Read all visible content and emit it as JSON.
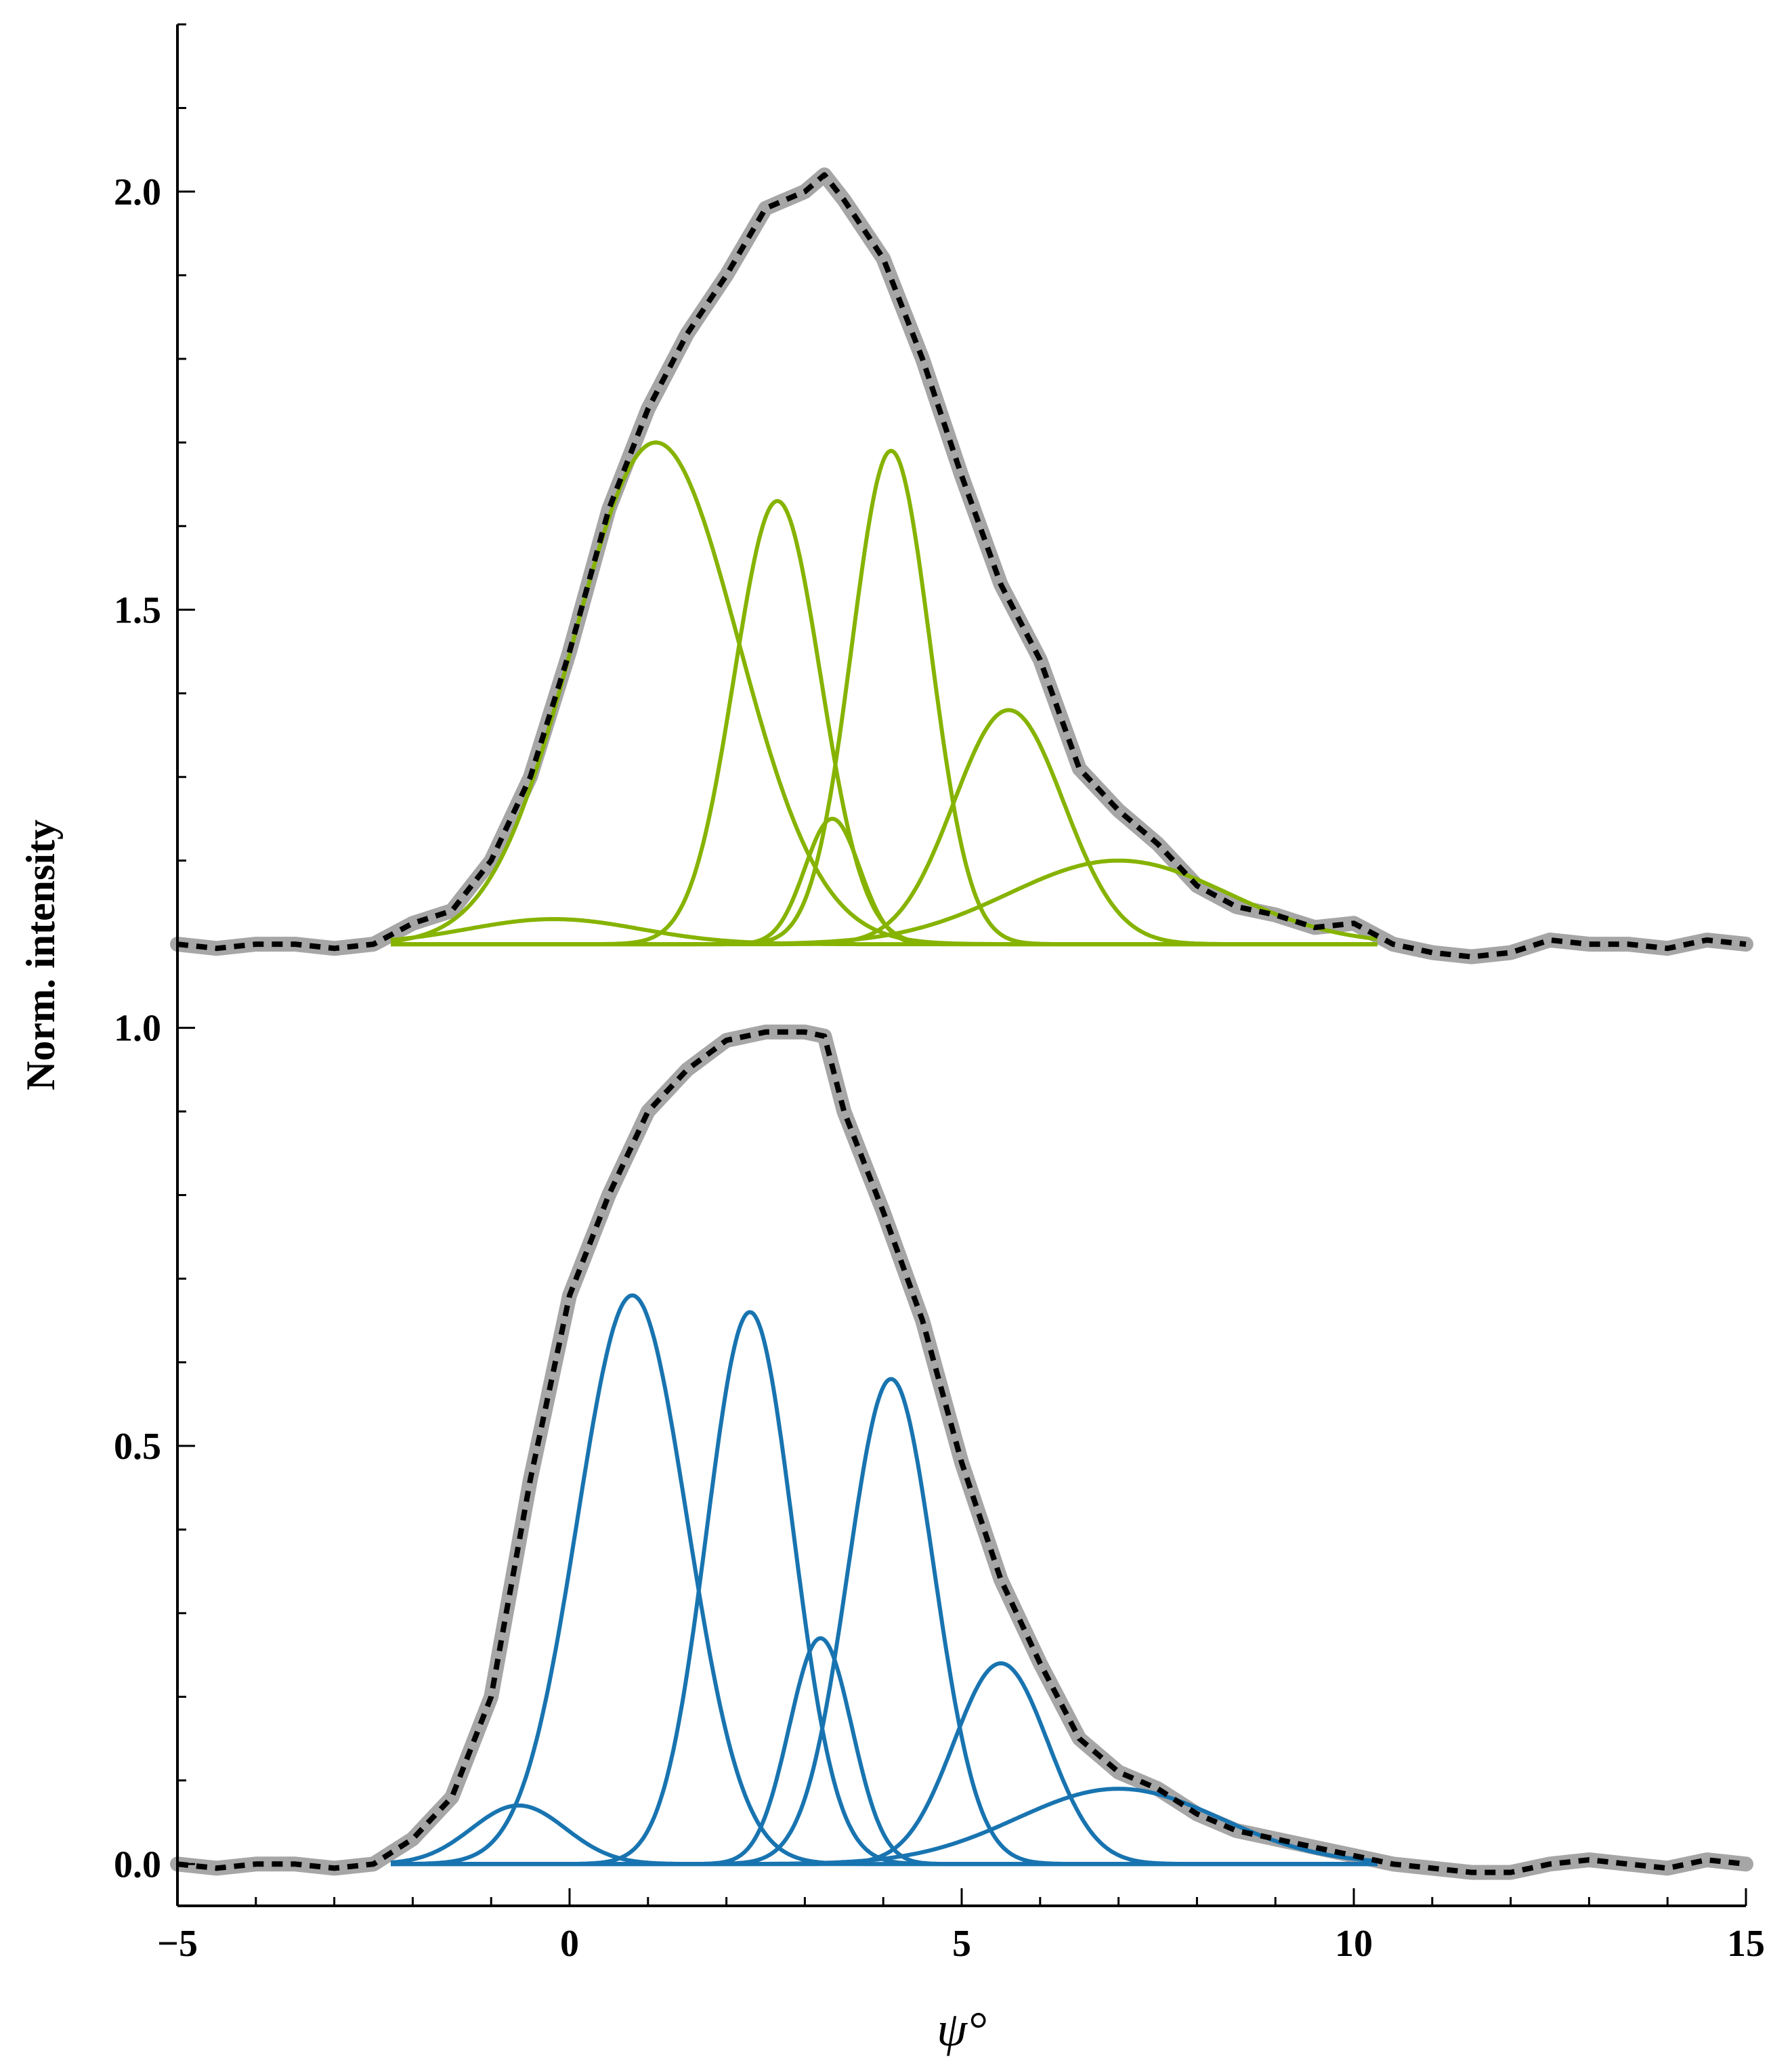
{
  "chart_data": {
    "type": "line",
    "title": "",
    "xlabel": "ψ°",
    "ylabel": "Norm. intensity",
    "xlim": [
      -5,
      15
    ],
    "ylim": [
      -0.05,
      2.2
    ],
    "grid": false,
    "x_ticks": [
      {
        "value": -5,
        "label": "−5"
      },
      {
        "value": 0,
        "label": "0"
      },
      {
        "value": 5,
        "label": "5"
      },
      {
        "value": 10,
        "label": "10"
      },
      {
        "value": 15,
        "label": "15"
      }
    ],
    "y_ticks": [
      {
        "value": 0.0,
        "label": "0.0"
      },
      {
        "value": 0.5,
        "label": "0.5"
      },
      {
        "value": 1.0,
        "label": "1.0"
      },
      {
        "value": 1.5,
        "label": "1.5"
      },
      {
        "value": 2.0,
        "label": "2.0"
      }
    ],
    "colors": {
      "data": "#a6a6a6",
      "fit": "#000000",
      "upper_components": "#86b300",
      "lower_components": "#1874b0"
    },
    "panels": [
      {
        "name": "upper",
        "baseline": 1.1,
        "component_color": "#86b300",
        "components": [
          {
            "center": -0.2,
            "amplitude": 0.03,
            "sigma": 1.1
          },
          {
            "center": 1.1,
            "amplitude": 0.6,
            "sigma": 1.05
          },
          {
            "center": 2.65,
            "amplitude": 0.53,
            "sigma": 0.55
          },
          {
            "center": 3.35,
            "amplitude": 0.15,
            "sigma": 0.35
          },
          {
            "center": 4.1,
            "amplitude": 0.59,
            "sigma": 0.5
          },
          {
            "center": 5.6,
            "amplitude": 0.28,
            "sigma": 0.7
          },
          {
            "center": 7.0,
            "amplitude": 0.1,
            "sigma": 1.4
          }
        ],
        "measured": {
          "x": [
            -5,
            -4.5,
            -4,
            -3.5,
            -3,
            -2.5,
            -2,
            -1.5,
            -1,
            -0.5,
            0,
            0.5,
            1,
            1.5,
            2,
            2.5,
            3,
            3.25,
            3.5,
            4,
            4.5,
            5,
            5.5,
            6,
            6.5,
            7,
            7.5,
            8,
            8.5,
            9,
            9.5,
            10,
            10.5,
            11,
            11.5,
            12,
            12.5,
            13,
            13.5,
            14,
            14.5,
            15
          ],
          "y": [
            1.1,
            1.095,
            1.1,
            1.1,
            1.095,
            1.1,
            1.125,
            1.14,
            1.2,
            1.3,
            1.45,
            1.62,
            1.74,
            1.83,
            1.9,
            1.98,
            2.0,
            2.02,
            1.99,
            1.92,
            1.8,
            1.66,
            1.53,
            1.44,
            1.31,
            1.26,
            1.22,
            1.17,
            1.145,
            1.135,
            1.12,
            1.125,
            1.1,
            1.09,
            1.085,
            1.09,
            1.105,
            1.1,
            1.1,
            1.095,
            1.105,
            1.1
          ]
        }
      },
      {
        "name": "lower",
        "baseline": 0.0,
        "component_color": "#1874b0",
        "components": [
          {
            "center": -0.65,
            "amplitude": 0.07,
            "sigma": 0.6
          },
          {
            "center": 0.8,
            "amplitude": 0.68,
            "sigma": 0.7
          },
          {
            "center": 2.3,
            "amplitude": 0.66,
            "sigma": 0.55
          },
          {
            "center": 3.2,
            "amplitude": 0.27,
            "sigma": 0.4
          },
          {
            "center": 4.1,
            "amplitude": 0.58,
            "sigma": 0.55
          },
          {
            "center": 5.5,
            "amplitude": 0.24,
            "sigma": 0.6
          },
          {
            "center": 7.0,
            "amplitude": 0.09,
            "sigma": 1.3
          }
        ],
        "measured": {
          "x": [
            -5,
            -4.5,
            -4,
            -3.5,
            -3,
            -2.5,
            -2,
            -1.5,
            -1,
            -0.5,
            0,
            0.5,
            1,
            1.5,
            2,
            2.5,
            3,
            3.25,
            3.5,
            4,
            4.5,
            5,
            5.5,
            6,
            6.5,
            7,
            7.5,
            8,
            8.5,
            9,
            9.5,
            10,
            10.5,
            11,
            11.5,
            12,
            12.5,
            13,
            13.5,
            14,
            14.5,
            15
          ],
          "y": [
            0.0,
            -0.005,
            0.0,
            0.0,
            -0.005,
            0.0,
            0.03,
            0.08,
            0.2,
            0.46,
            0.68,
            0.8,
            0.9,
            0.95,
            0.985,
            0.995,
            0.995,
            0.99,
            0.9,
            0.78,
            0.65,
            0.48,
            0.34,
            0.24,
            0.15,
            0.11,
            0.09,
            0.06,
            0.04,
            0.03,
            0.02,
            0.01,
            0.0,
            -0.005,
            -0.01,
            -0.01,
            0.0,
            0.005,
            0.0,
            -0.005,
            0.005,
            0.0
          ]
        }
      }
    ]
  }
}
